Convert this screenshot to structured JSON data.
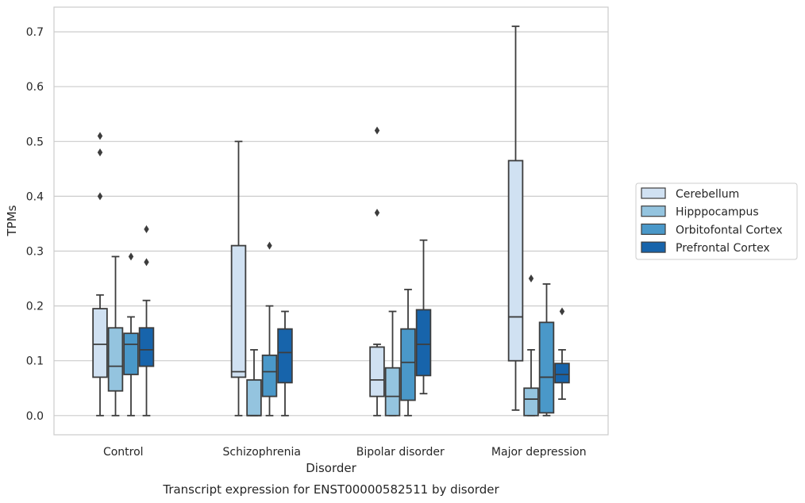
{
  "chart_data": {
    "type": "box",
    "xlabel": "Disorder",
    "ylabel": "TPMs",
    "caption": "Transcript expression for ENST00000582511 by disorder",
    "ylim": [
      -0.035,
      0.745
    ],
    "yticks": [
      0.0,
      0.1,
      0.2,
      0.3,
      0.4,
      0.5,
      0.6,
      0.7
    ],
    "ytick_labels": [
      "0.0",
      "0.1",
      "0.2",
      "0.3",
      "0.4",
      "0.5",
      "0.6",
      "0.7"
    ],
    "grid": "horizontal",
    "legend_position": "right",
    "categories": [
      "Control",
      "Schizophrenia",
      "Bipolar disorder",
      "Major depression"
    ],
    "series": [
      {
        "name": "Cerebellum",
        "color": "#d0e1f2",
        "boxes": [
          {
            "whislo": 0.0,
            "q1": 0.07,
            "med": 0.13,
            "q3": 0.195,
            "whishi": 0.22,
            "fliers": [
              0.4,
              0.48,
              0.51
            ]
          },
          {
            "whislo": 0.0,
            "q1": 0.07,
            "med": 0.08,
            "q3": 0.31,
            "whishi": 0.5,
            "fliers": []
          },
          {
            "whislo": 0.0,
            "q1": 0.035,
            "med": 0.065,
            "q3": 0.125,
            "whishi": 0.13,
            "fliers": [
              0.37,
              0.52
            ]
          },
          {
            "whislo": 0.01,
            "q1": 0.1,
            "med": 0.18,
            "q3": 0.465,
            "whishi": 0.71,
            "fliers": []
          }
        ]
      },
      {
        "name": "Hipppocampus",
        "color": "#94c4df",
        "boxes": [
          {
            "whislo": 0.0,
            "q1": 0.045,
            "med": 0.09,
            "q3": 0.16,
            "whishi": 0.29,
            "fliers": []
          },
          {
            "whislo": 0.0,
            "q1": 0.0,
            "med": 0.0,
            "q3": 0.065,
            "whishi": 0.12,
            "fliers": []
          },
          {
            "whislo": 0.0,
            "q1": 0.0,
            "med": 0.035,
            "q3": 0.087,
            "whishi": 0.19,
            "fliers": []
          },
          {
            "whislo": 0.0,
            "q1": 0.0,
            "med": 0.03,
            "q3": 0.05,
            "whishi": 0.12,
            "fliers": [
              0.25
            ]
          }
        ]
      },
      {
        "name": "Orbitofontal Cortex",
        "color": "#4a98c9",
        "boxes": [
          {
            "whislo": 0.0,
            "q1": 0.075,
            "med": 0.13,
            "q3": 0.15,
            "whishi": 0.18,
            "fliers": [
              0.29
            ]
          },
          {
            "whislo": 0.0,
            "q1": 0.035,
            "med": 0.08,
            "q3": 0.11,
            "whishi": 0.2,
            "fliers": [
              0.31
            ]
          },
          {
            "whislo": 0.0,
            "q1": 0.028,
            "med": 0.097,
            "q3": 0.158,
            "whishi": 0.23,
            "fliers": []
          },
          {
            "whislo": 0.0,
            "q1": 0.005,
            "med": 0.07,
            "q3": 0.17,
            "whishi": 0.24,
            "fliers": []
          }
        ]
      },
      {
        "name": "Prefrontal Cortex",
        "color": "#1764ab",
        "boxes": [
          {
            "whislo": 0.0,
            "q1": 0.09,
            "med": 0.12,
            "q3": 0.16,
            "whishi": 0.21,
            "fliers": [
              0.28,
              0.34
            ]
          },
          {
            "whislo": 0.0,
            "q1": 0.06,
            "med": 0.115,
            "q3": 0.158,
            "whishi": 0.19,
            "fliers": []
          },
          {
            "whislo": 0.04,
            "q1": 0.073,
            "med": 0.13,
            "q3": 0.193,
            "whishi": 0.32,
            "fliers": []
          },
          {
            "whislo": 0.03,
            "q1": 0.06,
            "med": 0.075,
            "q3": 0.095,
            "whishi": 0.12,
            "fliers": [
              0.19
            ]
          }
        ]
      }
    ]
  }
}
